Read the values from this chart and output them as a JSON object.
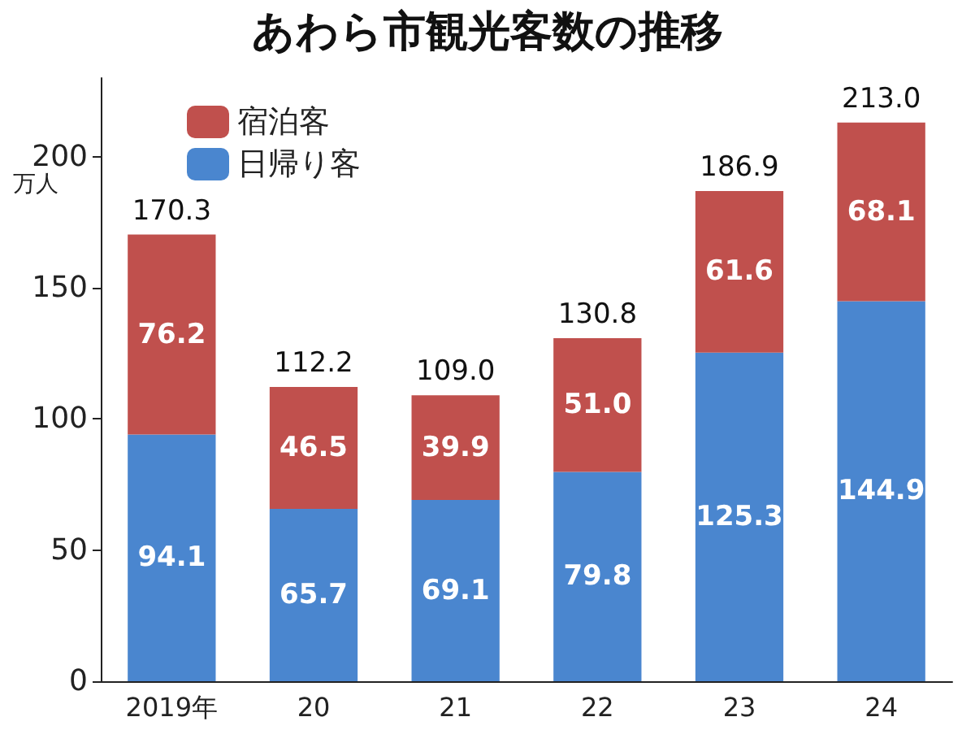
{
  "chart_data": {
    "type": "bar",
    "title": "あわら市観光客数の推移",
    "ylabel": "万人",
    "categories": [
      "2019年",
      "20",
      "21",
      "22",
      "23",
      "24"
    ],
    "stacked": true,
    "series": [
      {
        "name": "日帰り客",
        "color": "#4a86cf",
        "values": [
          94.1,
          65.7,
          69.1,
          79.8,
          125.3,
          144.9
        ]
      },
      {
        "name": "宿泊客",
        "color": "#c0504d",
        "values": [
          76.2,
          46.5,
          39.9,
          51.0,
          61.6,
          68.1
        ],
        "value_labels": [
          "76.2",
          "46.5",
          "39.9",
          "51.0",
          "61.6",
          "68.1"
        ]
      }
    ],
    "totals": [
      "170.3",
      "112.2",
      "109.0",
      "130.8",
      "186.9",
      "213.0"
    ],
    "data_labels": true,
    "ylim": [
      0,
      230
    ],
    "yticks": [
      0,
      50,
      100,
      150,
      200
    ],
    "grid": false,
    "legend": "top left"
  }
}
